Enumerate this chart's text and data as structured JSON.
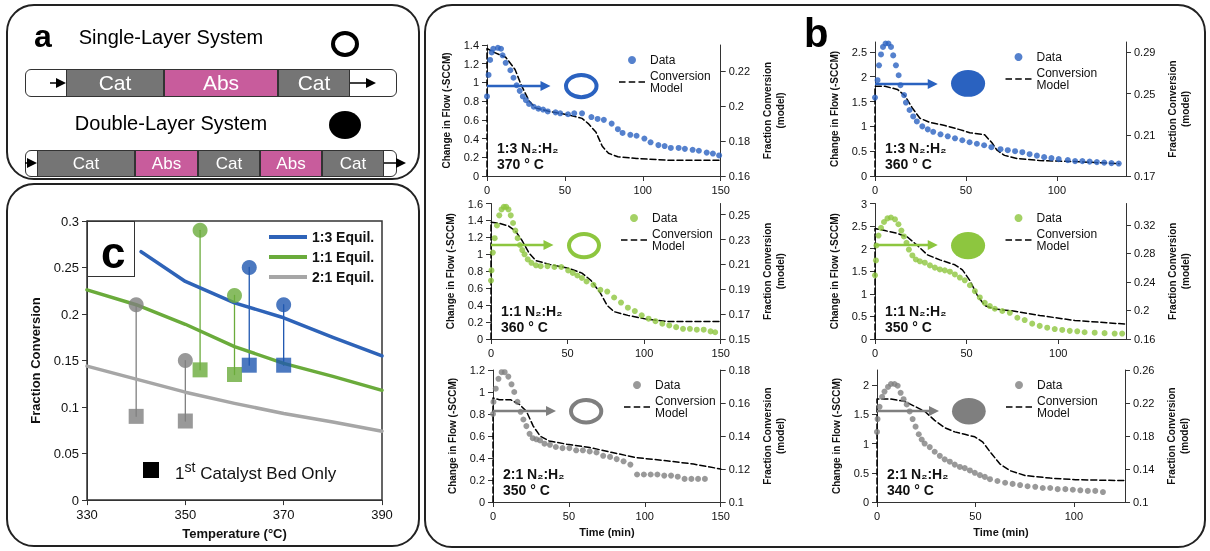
{
  "chart_data": [
    {
      "type": "other",
      "title": "a",
      "annotations": [
        "Single-Layer System",
        "Cat",
        "Abs",
        "Cat",
        "Double-Layer System",
        "Cat",
        "Abs",
        "Cat",
        "Abs",
        "Cat"
      ]
    },
    {
      "type": "line",
      "title": "c",
      "xlabel": "Temperature (°C)",
      "ylabel": "Fraction Conversion",
      "annotations": [
        "1$^{st}$ Catalyst Bed Only"
      ],
      "xlim": [
        330,
        390
      ],
      "xticks": [
        330,
        350,
        370,
        390
      ],
      "ylim": [
        0,
        0.3
      ],
      "yticks": [
        0,
        0.05,
        0.1,
        0.15,
        0.2,
        0.25,
        0.3
      ],
      "legend": "top right",
      "series": [
        {
          "type": "line",
          "x": [
            340,
            340
          ],
          "values": [
            0.09,
            0.21
          ],
          "color": "#808080"
        },
        {
          "type": "line",
          "x": [
            350,
            350
          ],
          "values": [
            0.085,
            0.15
          ],
          "color": "#808080"
        },
        {
          "type": "line",
          "x": [
            353,
            353
          ],
          "values": [
            0.14,
            0.29
          ],
          "color": "#6aab3b"
        },
        {
          "type": "line",
          "x": [
            360,
            360
          ],
          "values": [
            0.135,
            0.22
          ],
          "color": "#6aab3b"
        },
        {
          "type": "line",
          "x": [
            363,
            363
          ],
          "values": [
            0.145,
            0.25
          ],
          "color": "#1f57b0"
        },
        {
          "type": "line",
          "x": [
            370,
            370
          ],
          "values": [
            0.145,
            0.21
          ],
          "color": "#1f57b0"
        },
        {
          "name": "1:3 Equil.",
          "type": "line",
          "color": "#2e63b8",
          "x": [
            341,
            350,
            360,
            370,
            380,
            390
          ],
          "values": [
            0.267,
            0.235,
            0.212,
            0.196,
            0.175,
            0.155
          ]
        },
        {
          "name": "1:1 Equil.",
          "type": "line",
          "color": "#6aab3b",
          "x": [
            330,
            340,
            350,
            360,
            370,
            380,
            390
          ],
          "values": [
            0.226,
            0.21,
            0.189,
            0.165,
            0.147,
            0.133,
            0.118
          ]
        },
        {
          "name": "2:1 Equil.",
          "type": "line",
          "color": "#a6a6a6",
          "x": [
            330,
            340,
            350,
            360,
            370,
            380,
            390
          ],
          "values": [
            0.144,
            0.13,
            0.116,
            0.104,
            0.093,
            0.084,
            0.074
          ]
        },
        {
          "type": "scatter",
          "marker": "circle",
          "x": [
            340,
            350,
            353,
            360,
            363,
            370
          ],
          "values": [
            0.21,
            0.15,
            0.29,
            0.22,
            0.25,
            0.21
          ],
          "colors": [
            "#808080",
            "#808080",
            "#6aab3b",
            "#6aab3b",
            "#1f57b0",
            "#1f57b0"
          ]
        },
        {
          "type": "scatter",
          "marker": "square",
          "x": [
            340,
            350,
            353,
            360,
            363,
            370
          ],
          "values": [
            0.09,
            0.085,
            0.14,
            0.135,
            0.145,
            0.145
          ],
          "colors": [
            "#808080",
            "#808080",
            "#6aab3b",
            "#6aab3b",
            "#1f57b0",
            "#1f57b0"
          ]
        }
      ]
    },
    {
      "type": "scatter",
      "ylabel": "Change in Flow (-SCCM)",
      "y2label": "Fraction Conversion\n(model)",
      "annotations": [
        "1:3 N₂:H₂",
        "370 ° C"
      ],
      "legend": "top right",
      "xlim": [
        0,
        150
      ],
      "xticks": [
        0,
        50,
        100,
        150
      ],
      "ylim": [
        0,
        1.4
      ],
      "yticks": [
        0,
        0.2,
        0.4,
        0.6,
        0.8,
        1,
        1.2,
        1.4
      ],
      "y2lim": [
        0.16,
        0.235
      ],
      "y2ticks": [
        0.16,
        0.18,
        0.2,
        0.22
      ],
      "series": [
        {
          "name": "Data",
          "type": "scatter",
          "marker": "circle",
          "color": "#2a62c0",
          "x": [
            0,
            1,
            2,
            3,
            4,
            7,
            9,
            10,
            12,
            15,
            17,
            19,
            21,
            23,
            25,
            27,
            30,
            33,
            36,
            39,
            44,
            47,
            52,
            56,
            61,
            67,
            71,
            75,
            80,
            84,
            87,
            92,
            96,
            101,
            105,
            110,
            114,
            118,
            123,
            127,
            132,
            136,
            141,
            145,
            149
          ],
          "values": [
            0.85,
            1.08,
            1.24,
            1.32,
            1.36,
            1.37,
            1.36,
            1.29,
            1.21,
            1.13,
            1.05,
            0.97,
            0.91,
            0.85,
            0.81,
            0.77,
            0.74,
            0.72,
            0.71,
            0.69,
            0.68,
            0.67,
            0.66,
            0.67,
            0.67,
            0.63,
            0.61,
            0.6,
            0.56,
            0.5,
            0.46,
            0.44,
            0.43,
            0.4,
            0.36,
            0.33,
            0.32,
            0.3,
            0.3,
            0.29,
            0.28,
            0.27,
            0.25,
            0.24,
            0.22
          ]
        },
        {
          "name": "Conversion\nModel",
          "type": "line",
          "axis": "y2",
          "line_style": "dashed",
          "color": "#000000",
          "x": [
            0,
            0,
            4,
            12,
            18,
            22,
            27,
            31,
            40,
            52,
            61,
            65,
            70,
            74,
            78,
            84,
            96,
            117,
            149
          ],
          "values": [
            0.16,
            0.233,
            0.231,
            0.228,
            0.221,
            0.212,
            0.203,
            0.199,
            0.197,
            0.195,
            0.193,
            0.19,
            0.185,
            0.177,
            0.173,
            0.171,
            0.17,
            0.169,
            0.169
          ]
        }
      ]
    },
    {
      "type": "scatter",
      "title": "b",
      "ylabel": "Change in Flow (-SCCM)",
      "y2label": "Fraction Conversion\n(model)",
      "annotations": [
        "1:3 N₂:H₂",
        "360 ° C"
      ],
      "legend": "top right",
      "xlim": [
        0,
        138
      ],
      "xticks": [
        0,
        50,
        100
      ],
      "ylim": [
        0,
        2.7
      ],
      "yticks": [
        0,
        0.5,
        1,
        1.5,
        2,
        2.5
      ],
      "y2lim": [
        0.17,
        0.3
      ],
      "y2ticks": [
        0.17,
        0.21,
        0.25,
        0.29
      ],
      "series": [
        {
          "name": "Data",
          "type": "scatter",
          "marker": "circle",
          "color": "#2a62c0",
          "x": [
            0,
            1.4,
            2.2,
            3.3,
            4.4,
            5.8,
            7.4,
            8.8,
            10,
            11.5,
            13,
            14,
            16,
            17,
            19,
            21,
            23,
            26,
            29,
            32,
            36,
            40,
            44,
            48,
            52,
            56,
            60,
            64,
            69,
            73,
            77,
            81,
            85,
            89,
            93,
            97,
            101,
            106,
            110,
            114,
            118,
            122,
            126,
            130,
            134
          ],
          "values": [
            1.58,
            1.93,
            2.23,
            2.45,
            2.6,
            2.67,
            2.67,
            2.6,
            2.43,
            2.23,
            2.03,
            1.83,
            1.63,
            1.48,
            1.33,
            1.2,
            1.1,
            1.0,
            0.94,
            0.89,
            0.84,
            0.8,
            0.76,
            0.72,
            0.68,
            0.65,
            0.62,
            0.58,
            0.54,
            0.52,
            0.5,
            0.48,
            0.44,
            0.41,
            0.38,
            0.36,
            0.34,
            0.32,
            0.3,
            0.3,
            0.29,
            0.28,
            0.27,
            0.26,
            0.25
          ]
        },
        {
          "name": "Conversion\nModel",
          "type": "line",
          "axis": "y2",
          "line_style": "dashed",
          "color": "#000000",
          "x": [
            0,
            0,
            5.5,
            12.3,
            16.4,
            20.5,
            24.7,
            30.1,
            38.4,
            46.6,
            52.1,
            60.3,
            64.4,
            67.1,
            71.2,
            78.1,
            90.4,
            109.6,
            134.2
          ],
          "values": [
            0.17,
            0.257,
            0.257,
            0.254,
            0.248,
            0.236,
            0.226,
            0.222,
            0.219,
            0.215,
            0.212,
            0.21,
            0.202,
            0.195,
            0.19,
            0.187,
            0.185,
            0.184,
            0.182
          ]
        }
      ]
    },
    {
      "type": "scatter",
      "ylabel": "Change in Flow (-SCCM)",
      "y2label": "Fraction Conversion\n(model)",
      "annotations": [
        "1:1 N₂:H₂",
        "360 ° C"
      ],
      "legend": "top right",
      "xlim": [
        0,
        150
      ],
      "xticks": [
        0,
        50,
        100,
        150
      ],
      "ylim": [
        0,
        1.6
      ],
      "yticks": [
        0,
        0.2,
        0.4,
        0.6,
        0.8,
        1,
        1.2,
        1.4,
        1.6
      ],
      "y2lim": [
        0.15,
        0.259
      ],
      "y2ticks": [
        0.15,
        0.17,
        0.19,
        0.21,
        0.23,
        0.25
      ],
      "series": [
        {
          "name": "Data",
          "type": "scatter",
          "marker": "circle",
          "color": "#8dc63f",
          "x": [
            0,
            0.3,
            1.2,
            2.4,
            3.9,
            5.4,
            6.9,
            8.4,
            9.9,
            11.4,
            12.9,
            14.4,
            15.9,
            17.4,
            18.9,
            20.4,
            21.9,
            24,
            26.4,
            29.4,
            32.4,
            36.9,
            41.4,
            45.9,
            50.4,
            53.4,
            56.4,
            59.4,
            62.4,
            66.9,
            71.4,
            75.9,
            80.4,
            84.9,
            89.4,
            93.9,
            98.4,
            102.9,
            107.4,
            111.9,
            116.4,
            120.9,
            125.4,
            129.9,
            134.4,
            138.9,
            143.4,
            146.4
          ],
          "values": [
            0.69,
            0.81,
            1.02,
            1.19,
            1.34,
            1.46,
            1.53,
            1.56,
            1.56,
            1.53,
            1.46,
            1.37,
            1.28,
            1.19,
            1.11,
            1.05,
            1.0,
            0.94,
            0.9,
            0.87,
            0.86,
            0.86,
            0.85,
            0.85,
            0.81,
            0.78,
            0.75,
            0.72,
            0.68,
            0.64,
            0.58,
            0.56,
            0.49,
            0.43,
            0.37,
            0.33,
            0.28,
            0.24,
            0.21,
            0.18,
            0.16,
            0.14,
            0.12,
            0.12,
            0.11,
            0.11,
            0.09,
            0.08
          ]
        },
        {
          "name": "Conversion\nModel",
          "type": "line",
          "axis": "y2",
          "line_style": "dashed",
          "color": "#000000",
          "x": [
            0,
            0,
            5.4,
            11.4,
            15.9,
            20.4,
            24.9,
            29.4,
            38.4,
            50.4,
            59.4,
            65.4,
            71.4,
            75.9,
            80.4,
            89.4,
            101.4,
            116.4,
            149.4
          ],
          "values": [
            0.15,
            0.244,
            0.243,
            0.241,
            0.237,
            0.229,
            0.219,
            0.213,
            0.21,
            0.207,
            0.203,
            0.197,
            0.187,
            0.177,
            0.172,
            0.169,
            0.166,
            0.164,
            0.164
          ]
        }
      ]
    },
    {
      "type": "scatter",
      "ylabel": "Change in Flow (-SCCM)",
      "y2label": "Fraction Conversion\n(model)",
      "annotations": [
        "1:1 N₂:H₂",
        "350 ° C"
      ],
      "legend": "top right",
      "xlim": [
        0,
        137
      ],
      "xticks": [
        0,
        50,
        100
      ],
      "ylim": [
        0,
        3
      ],
      "yticks": [
        0,
        0.5,
        1,
        1.5,
        2,
        2.5,
        3
      ],
      "y2lim": [
        0.16,
        0.35
      ],
      "y2ticks": [
        0.16,
        0.2,
        0.24,
        0.28,
        0.32
      ],
      "series": [
        {
          "name": "Data",
          "type": "scatter",
          "marker": "circle",
          "color": "#8dc63f",
          "x": [
            0,
            0.5,
            0.8,
            1.9,
            3.3,
            4.9,
            6.8,
            8.7,
            10.9,
            12.8,
            14.4,
            15.8,
            17.2,
            18.5,
            20.4,
            22.3,
            24.5,
            27.2,
            30,
            32.7,
            35.4,
            38.1,
            40.9,
            43.6,
            46.3,
            49,
            51.8,
            54.5,
            57.2,
            59.9,
            62.7,
            65.4,
            69.5,
            73.6,
            77.7,
            81.7,
            85.8,
            89.9,
            94,
            98.1,
            102.2,
            106.3,
            110.4,
            114.4,
            119.9,
            125.3,
            130.8,
            134.9
          ],
          "values": [
            1.41,
            1.74,
            2.07,
            2.29,
            2.46,
            2.59,
            2.67,
            2.69,
            2.65,
            2.54,
            2.4,
            2.27,
            2.13,
            1.98,
            1.85,
            1.76,
            1.72,
            1.69,
            1.63,
            1.58,
            1.54,
            1.52,
            1.49,
            1.43,
            1.36,
            1.3,
            1.19,
            1.06,
            0.92,
            0.8,
            0.73,
            0.67,
            0.62,
            0.58,
            0.47,
            0.42,
            0.34,
            0.29,
            0.25,
            0.22,
            0.2,
            0.18,
            0.17,
            0.15,
            0.14,
            0.13,
            0.12,
            0.12
          ]
        },
        {
          "name": "Conversion\nModel",
          "type": "line",
          "axis": "y2",
          "line_style": "dashed",
          "color": "#000000",
          "x": [
            0,
            0,
            5.4,
            12.3,
            17.7,
            23.2,
            28.6,
            35.4,
            43.6,
            47.7,
            51.8,
            55.9,
            59.9,
            65.4,
            76.3,
            89.9,
            109,
            136.2
          ],
          "values": [
            0.16,
            0.315,
            0.312,
            0.308,
            0.303,
            0.291,
            0.278,
            0.271,
            0.264,
            0.257,
            0.242,
            0.221,
            0.207,
            0.202,
            0.199,
            0.193,
            0.186,
            0.181
          ]
        }
      ]
    },
    {
      "type": "scatter",
      "xlabel": "Time (min)",
      "ylabel": "Change in Flow (-SCCM)",
      "y2label": "Fraction Conversion\n(model)",
      "annotations": [
        "2:1 N₂:H₂",
        "350 ° C"
      ],
      "legend": "top right",
      "xlim": [
        0,
        150
      ],
      "xticks": [
        0,
        50,
        100,
        150
      ],
      "ylim": [
        0,
        1.2
      ],
      "yticks": [
        0,
        0.2,
        0.4,
        0.6,
        0.8,
        1,
        1.2
      ],
      "y2lim": [
        0.1,
        0.18
      ],
      "y2ticks": [
        0.1,
        0.12,
        0.14,
        0.16,
        0.18
      ],
      "series": [
        {
          "name": "Data",
          "type": "scatter",
          "marker": "circle",
          "color": "#7f7f7f",
          "x": [
            0,
            0.3,
            1.8,
            3.6,
            5.7,
            7.7,
            10.1,
            12.2,
            14,
            16.1,
            18.2,
            20,
            22,
            24.1,
            26.2,
            28.6,
            31,
            33.9,
            37.5,
            41.4,
            45.8,
            50.3,
            54.8,
            59.2,
            63.7,
            68.2,
            72.6,
            77.1,
            81.5,
            86,
            90.5,
            94.9,
            99.4,
            103.9,
            108.3,
            112.8,
            117.3,
            121.7,
            126.2,
            130.7,
            135.1,
            139.6
          ],
          "values": [
            0.8,
            0.91,
            1.03,
            1.12,
            1.18,
            1.18,
            1.14,
            1.07,
            1.0,
            0.91,
            0.82,
            0.75,
            0.69,
            0.62,
            0.58,
            0.57,
            0.56,
            0.53,
            0.52,
            0.5,
            0.49,
            0.49,
            0.47,
            0.47,
            0.46,
            0.45,
            0.42,
            0.41,
            0.39,
            0.37,
            0.34,
            0.25,
            0.25,
            0.25,
            0.25,
            0.24,
            0.24,
            0.23,
            0.21,
            0.21,
            0.21,
            0.21
          ]
        },
        {
          "name": "Conversion\nModel",
          "type": "line",
          "axis": "y2",
          "line_style": "dashed",
          "color": "#000000",
          "x": [
            0,
            0,
            4.2,
            11.6,
            17.6,
            22,
            26.5,
            31,
            36.9,
            48.8,
            63.7,
            78.6,
            93.5,
            114.3,
            132.1,
            150
          ],
          "values": [
            0.1,
            0.163,
            0.162,
            0.162,
            0.159,
            0.155,
            0.146,
            0.14,
            0.137,
            0.135,
            0.133,
            0.13,
            0.127,
            0.125,
            0.123,
            0.12
          ]
        }
      ]
    },
    {
      "type": "scatter",
      "xlabel": "Time (min)",
      "ylabel": "Change in Flow (-SCCM)",
      "y2label": "Fraction Conversion\n(model)",
      "annotations": [
        "2:1 N₂:H₂",
        "340 ° C"
      ],
      "legend": "top right",
      "xlim": [
        0,
        126
      ],
      "xticks": [
        0,
        50,
        100
      ],
      "ylim": [
        0,
        2.26
      ],
      "yticks": [
        0,
        0.5,
        1,
        1.5,
        2
      ],
      "y2lim": [
        0.1,
        0.26
      ],
      "y2ticks": [
        0.1,
        0.14,
        0.18,
        0.22,
        0.26
      ],
      "series": [
        {
          "name": "Data",
          "type": "scatter",
          "marker": "circle",
          "color": "#7f7f7f",
          "x": [
            0,
            0.3,
            1.3,
            2.6,
            3.8,
            5.6,
            7.1,
            8.9,
            10.5,
            12,
            13.5,
            15.1,
            16.6,
            18.1,
            19.6,
            21.2,
            22.7,
            24.2,
            26.8,
            29.3,
            31.9,
            34.4,
            37,
            39.5,
            42.1,
            44.6,
            47.2,
            49.7,
            52.3,
            54.8,
            57.4,
            61.2,
            65.1,
            68.9,
            72.7,
            76.5,
            80.4,
            84.2,
            88,
            91.8,
            95.7,
            99.5,
            103.3,
            107.1,
            110.9,
            114.8
          ],
          "values": [
            1.2,
            1.42,
            1.63,
            1.8,
            1.89,
            1.97,
            2.02,
            2.02,
            1.99,
            1.87,
            1.76,
            1.67,
            1.55,
            1.42,
            1.29,
            1.16,
            1.07,
            1.0,
            0.94,
            0.86,
            0.79,
            0.73,
            0.69,
            0.64,
            0.6,
            0.58,
            0.54,
            0.5,
            0.46,
            0.43,
            0.39,
            0.36,
            0.33,
            0.31,
            0.29,
            0.27,
            0.26,
            0.24,
            0.24,
            0.22,
            0.22,
            0.21,
            0.2,
            0.19,
            0.19,
            0.17
          ]
        },
        {
          "name": "Conversion\nModel",
          "type": "line",
          "axis": "y2",
          "line_style": "dashed",
          "color": "#000000",
          "x": [
            0,
            0,
            6.4,
            14,
            19.1,
            24.2,
            29.3,
            34.4,
            39.5,
            44.6,
            49.7,
            53.6,
            57.4,
            62.5,
            67.6,
            75.3,
            88,
            100.8,
            126
          ],
          "values": [
            0.1,
            0.225,
            0.225,
            0.222,
            0.216,
            0.21,
            0.199,
            0.19,
            0.185,
            0.182,
            0.179,
            0.173,
            0.161,
            0.146,
            0.138,
            0.132,
            0.129,
            0.127,
            0.126
          ]
        }
      ]
    }
  ]
}
